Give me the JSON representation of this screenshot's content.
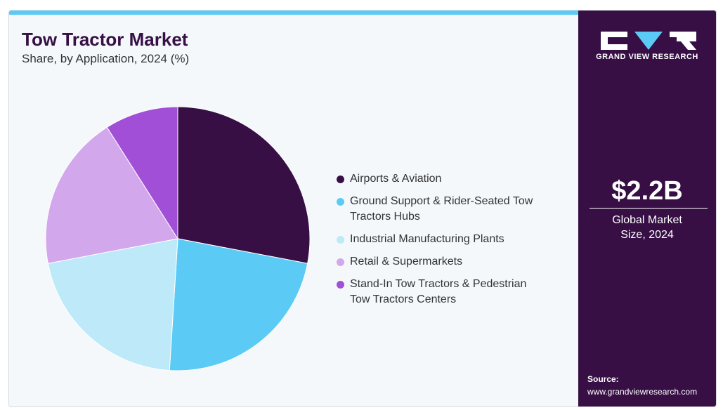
{
  "chart_data": {
    "type": "pie",
    "title": "Tow Tractor Market",
    "subtitle": "Share, by Application, 2024 (%)",
    "categories": [
      "Airports & Aviation",
      "Ground Support & Rider-Seated Tow Tractors Hubs",
      "Industrial Manufacturing Plants",
      "Retail & Supermarkets",
      "Stand-In Tow Tractors & Pedestrian Tow Tractors Centers"
    ],
    "values": [
      28,
      23,
      21,
      19,
      9
    ],
    "colors": [
      "#370f45",
      "#5bcbf5",
      "#bde9f9",
      "#d3a7eb",
      "#a24fd8"
    ]
  },
  "brand": "GRAND VIEW RESEARCH",
  "market_size": {
    "value": "$2.2B",
    "label": "Global Market Size, 2024"
  },
  "source": {
    "label": "Source:",
    "url": "www.grandviewresearch.com"
  }
}
